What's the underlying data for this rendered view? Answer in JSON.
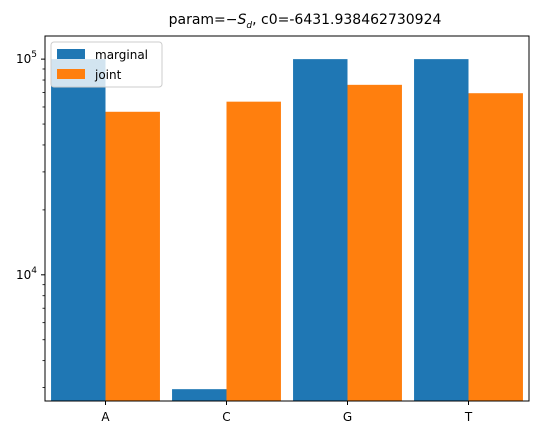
{
  "chart_data": {
    "type": "bar",
    "title": "param=−S_d, c0=-6431.938462730924",
    "title_parts": {
      "prefix": "param=−",
      "symbol": "S",
      "subscript": "d",
      "suffix": ", c0=-6431.938462730924"
    },
    "categories": [
      "A",
      "C",
      "G",
      "T"
    ],
    "series": [
      {
        "name": "marginal",
        "color": "#1f77b4",
        "values": [
          100000,
          2950,
          100000,
          100000
        ]
      },
      {
        "name": "joint",
        "color": "#ff7f0e",
        "values": [
          57000,
          63500,
          76000,
          69500
        ]
      }
    ],
    "y_scale": "log",
    "ylim": [
      2600,
      128000
    ],
    "y_ticks": [
      {
        "value": 10000,
        "base": "10",
        "exp": "4"
      },
      {
        "value": 100000,
        "base": "10",
        "exp": "5"
      }
    ],
    "legend_position": "top-left",
    "grid": false
  }
}
